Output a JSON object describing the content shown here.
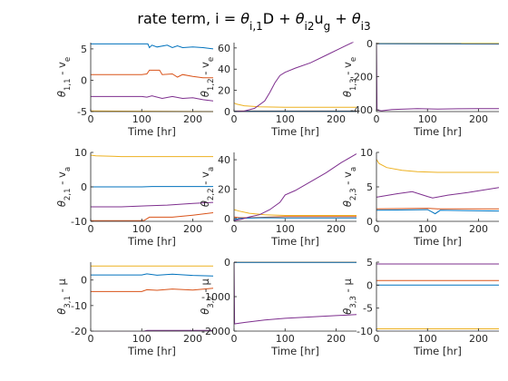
{
  "figure": {
    "title_parts": [
      {
        "t": "rate term, i = ",
        "s": "n"
      },
      {
        "t": "θ",
        "s": "i"
      },
      {
        "t": "i,1",
        "s": "sub"
      },
      {
        "t": "D + ",
        "s": "n"
      },
      {
        "t": "θ",
        "s": "i"
      },
      {
        "t": "i2",
        "s": "sub"
      },
      {
        "t": "u",
        "s": "n"
      },
      {
        "t": "g",
        "s": "sub"
      },
      {
        "t": " + ",
        "s": "n"
      },
      {
        "t": "θ",
        "s": "i"
      },
      {
        "t": "i3",
        "s": "sub"
      }
    ]
  },
  "colors": {
    "blue": "#0072BD",
    "orange": "#D95319",
    "yellow": "#EDB120",
    "purple": "#7E2F8E",
    "axis": "#262626"
  },
  "chart_data": [
    {
      "type": "line",
      "ylabel_parts": [
        {
          "t": "θ",
          "s": "i"
        },
        {
          "t": "1,1",
          "s": "sub"
        },
        {
          "t": " - v",
          "s": "n"
        },
        {
          "t": "e",
          "s": "sub"
        }
      ],
      "xlabel": "Time [hr]",
      "xlim": [
        0,
        240
      ],
      "ylim": [
        -5,
        6
      ],
      "xticks": [
        0,
        100,
        200
      ],
      "yticks": [
        -5,
        0,
        5
      ],
      "series": [
        {
          "color": "blue",
          "x": [
            0,
            10,
            100,
            112,
            115,
            120,
            130,
            150,
            160,
            170,
            180,
            200,
            220,
            240
          ],
          "y": [
            5.8,
            5.8,
            5.8,
            5.8,
            5.2,
            5.6,
            5.3,
            5.6,
            5.2,
            5.5,
            5.2,
            5.3,
            5.2,
            5.0
          ]
        },
        {
          "color": "orange",
          "x": [
            0,
            10,
            100,
            110,
            115,
            120,
            135,
            140,
            160,
            170,
            180,
            200,
            220,
            240
          ],
          "y": [
            0.9,
            0.9,
            0.9,
            1.0,
            1.6,
            1.6,
            1.6,
            0.9,
            1.0,
            0.5,
            0.9,
            0.6,
            0.4,
            0.4
          ]
        },
        {
          "color": "purple",
          "x": [
            0,
            10,
            100,
            110,
            120,
            140,
            160,
            180,
            200,
            220,
            240
          ],
          "y": [
            -2.6,
            -2.6,
            -2.6,
            -2.7,
            -2.5,
            -2.9,
            -2.6,
            -2.9,
            -2.8,
            -3.1,
            -3.3
          ]
        },
        {
          "color": "yellow",
          "x": [
            0,
            240
          ],
          "y": [
            -4.9,
            -5.0
          ]
        }
      ]
    },
    {
      "type": "line",
      "ylabel_parts": [
        {
          "t": "θ",
          "s": "i"
        },
        {
          "t": "1,2",
          "s": "sub"
        },
        {
          "t": " - v",
          "s": "n"
        },
        {
          "t": "e",
          "s": "sub"
        }
      ],
      "xlabel": "Time [hr]",
      "xlim": [
        0,
        240
      ],
      "ylim": [
        0,
        65
      ],
      "xticks": [
        0,
        100,
        200
      ],
      "yticks": [
        0,
        20,
        40,
        60
      ],
      "series": [
        {
          "color": "yellow",
          "x": [
            0,
            5,
            20,
            50,
            100,
            150,
            200,
            240
          ],
          "y": [
            8,
            7,
            5.5,
            4.5,
            4,
            4,
            4,
            4
          ]
        },
        {
          "color": "orange",
          "x": [
            0,
            240
          ],
          "y": [
            0.5,
            0.5
          ]
        },
        {
          "color": "blue",
          "x": [
            0,
            240
          ],
          "y": [
            0.3,
            0.3
          ]
        },
        {
          "color": "purple",
          "x": [
            0,
            20,
            40,
            60,
            70,
            80,
            90,
            100,
            120,
            150,
            180,
            210,
            240
          ],
          "y": [
            0,
            0.5,
            3,
            10,
            18,
            27,
            34,
            37,
            41,
            46,
            53,
            60,
            67
          ]
        }
      ]
    },
    {
      "type": "line",
      "ylabel_parts": [
        {
          "t": "θ",
          "s": "i"
        },
        {
          "t": "1,3",
          "s": "sub"
        },
        {
          "t": " - v",
          "s": "n"
        },
        {
          "t": "e",
          "s": "sub"
        }
      ],
      "xlabel": "Time [hr]",
      "xlim": [
        0,
        240
      ],
      "ylim": [
        -410,
        5
      ],
      "xticks": [
        0,
        100,
        200
      ],
      "yticks": [
        -400,
        -200,
        0
      ],
      "series": [
        {
          "color": "yellow",
          "x": [
            0,
            240
          ],
          "y": [
            0,
            0
          ]
        },
        {
          "color": "orange",
          "x": [
            0,
            240
          ],
          "y": [
            -2,
            -4
          ]
        },
        {
          "color": "blue",
          "x": [
            0,
            240
          ],
          "y": [
            -1,
            -2
          ]
        },
        {
          "color": "purple",
          "x": [
            0,
            1,
            10,
            30,
            80,
            120,
            160,
            200,
            240
          ],
          "y": [
            0,
            -400,
            -405,
            -398,
            -392,
            -395,
            -393,
            -392,
            -392
          ]
        }
      ]
    },
    {
      "type": "line",
      "ylabel_parts": [
        {
          "t": "θ",
          "s": "i"
        },
        {
          "t": "2,1",
          "s": "sub"
        },
        {
          "t": " - v",
          "s": "n"
        },
        {
          "t": "a",
          "s": "sub"
        }
      ],
      "xlabel": "Time [hr]",
      "xlim": [
        0,
        240
      ],
      "ylim": [
        -10,
        10
      ],
      "xticks": [
        0,
        100,
        200
      ],
      "yticks": [
        -10,
        0,
        10
      ],
      "series": [
        {
          "color": "yellow",
          "x": [
            0,
            10,
            60,
            120,
            180,
            240
          ],
          "y": [
            9.2,
            9.0,
            8.8,
            8.8,
            8.8,
            8.8
          ]
        },
        {
          "color": "blue",
          "x": [
            0,
            100,
            120,
            240
          ],
          "y": [
            0,
            0,
            0.1,
            0.1
          ]
        },
        {
          "color": "purple",
          "x": [
            0,
            60,
            110,
            150,
            200,
            240
          ],
          "y": [
            -5.8,
            -5.8,
            -5.5,
            -5.3,
            -4.8,
            -4.5
          ]
        },
        {
          "color": "orange",
          "x": [
            0,
            100,
            105,
            115,
            160,
            200,
            240
          ],
          "y": [
            -9.8,
            -9.8,
            -9.7,
            -8.8,
            -8.8,
            -8.2,
            -7.5
          ]
        }
      ]
    },
    {
      "type": "line",
      "ylabel_parts": [
        {
          "t": "θ",
          "s": "i"
        },
        {
          "t": "2,2",
          "s": "sub"
        },
        {
          "t": " - v",
          "s": "a"
        },
        {
          "t": "a",
          "s": "sub"
        }
      ],
      "xlabel": "Time [hr]",
      "xlim": [
        0,
        240
      ],
      "ylim": [
        -2,
        45
      ],
      "xticks": [
        0,
        100,
        200
      ],
      "yticks": [
        0,
        20,
        40
      ],
      "series": [
        {
          "color": "yellow",
          "x": [
            0,
            10,
            30,
            60,
            100,
            150,
            240
          ],
          "y": [
            6,
            5,
            3.5,
            2.5,
            2,
            2,
            2
          ]
        },
        {
          "color": "orange",
          "x": [
            0,
            10,
            30,
            60,
            100,
            240
          ],
          "y": [
            1,
            0.5,
            0.5,
            0.8,
            1.2,
            1.2
          ]
        },
        {
          "color": "blue",
          "x": [
            0,
            10,
            30,
            60,
            100,
            240
          ],
          "y": [
            -1,
            0,
            0.2,
            0.5,
            0.3,
            0.3
          ]
        },
        {
          "color": "purple",
          "x": [
            0,
            15,
            30,
            50,
            70,
            90,
            100,
            120,
            150,
            180,
            210,
            240
          ],
          "y": [
            -1.5,
            -0.5,
            1,
            2.5,
            6,
            11,
            16,
            19,
            25,
            31,
            38,
            44
          ]
        }
      ]
    },
    {
      "type": "line",
      "ylabel_parts": [
        {
          "t": "θ",
          "s": "i"
        },
        {
          "t": "2,3",
          "s": "sub"
        },
        {
          "t": " - v",
          "s": "n"
        },
        {
          "t": "a",
          "s": "sub"
        }
      ],
      "xlabel": "Time [hr]",
      "xlim": [
        0,
        240
      ],
      "ylim": [
        0,
        10
      ],
      "xticks": [
        0,
        100,
        200
      ],
      "yticks": [
        0,
        5,
        10
      ],
      "series": [
        {
          "color": "yellow",
          "x": [
            0,
            5,
            20,
            50,
            80,
            120,
            160,
            200,
            240
          ],
          "y": [
            9,
            8.4,
            7.8,
            7.4,
            7.2,
            7.1,
            7.1,
            7.1,
            7.1
          ]
        },
        {
          "color": "purple",
          "x": [
            0,
            40,
            70,
            100,
            110,
            140,
            180,
            240
          ],
          "y": [
            3.5,
            4,
            4.3,
            3.6,
            3.4,
            3.8,
            4.2,
            4.9
          ]
        },
        {
          "color": "orange",
          "x": [
            0,
            100,
            120,
            240
          ],
          "y": [
            1.8,
            1.9,
            1.8,
            1.8
          ]
        },
        {
          "color": "blue",
          "x": [
            0,
            100,
            108,
            115,
            125,
            240
          ],
          "y": [
            1.6,
            1.7,
            1.4,
            1.1,
            1.6,
            1.5
          ]
        }
      ]
    },
    {
      "type": "line",
      "ylabel_parts": [
        {
          "t": "θ",
          "s": "i"
        },
        {
          "t": "3,1",
          "s": "sub"
        },
        {
          "t": " - μ",
          "s": "n"
        }
      ],
      "xlabel": "Time [hr]",
      "xlim": [
        0,
        240
      ],
      "ylim": [
        -20,
        7
      ],
      "xticks": [
        0,
        100,
        200
      ],
      "yticks": [
        -20,
        -10,
        0
      ],
      "series": [
        {
          "color": "yellow",
          "x": [
            0,
            240
          ],
          "y": [
            5.5,
            5.5
          ]
        },
        {
          "color": "blue",
          "x": [
            0,
            100,
            110,
            130,
            160,
            200,
            240
          ],
          "y": [
            2.0,
            2.0,
            2.4,
            1.9,
            2.3,
            1.8,
            1.6
          ]
        },
        {
          "color": "orange",
          "x": [
            0,
            100,
            110,
            130,
            160,
            200,
            240
          ],
          "y": [
            -4.5,
            -4.5,
            -3.8,
            -4.0,
            -3.5,
            -3.9,
            -3.2
          ]
        },
        {
          "color": "purple",
          "x": [
            0,
            100,
            110,
            240
          ],
          "y": [
            -20.3,
            -20.3,
            -19.7,
            -19.7
          ]
        }
      ]
    },
    {
      "type": "line",
      "ylabel_parts": [
        {
          "t": "θ",
          "s": "i"
        },
        {
          "t": "3,2",
          "s": "sub"
        },
        {
          "t": " - μ",
          "s": "n"
        }
      ],
      "xlabel": "Time [hr]",
      "xlim": [
        0,
        240
      ],
      "ylim": [
        -2000,
        0
      ],
      "xticks": [
        0,
        100,
        200
      ],
      "yticks": [
        -2000,
        -1000,
        0
      ],
      "series": [
        {
          "color": "yellow",
          "x": [
            0,
            240
          ],
          "y": [
            0,
            0
          ]
        },
        {
          "color": "orange",
          "x": [
            0,
            240
          ],
          "y": [
            -8,
            -8
          ]
        },
        {
          "color": "blue",
          "x": [
            0,
            240
          ],
          "y": [
            -4,
            -4
          ]
        },
        {
          "color": "purple",
          "x": [
            0,
            1,
            20,
            60,
            100,
            150,
            200,
            240
          ],
          "y": [
            0,
            -1790,
            -1750,
            -1680,
            -1630,
            -1590,
            -1550,
            -1520
          ]
        }
      ]
    },
    {
      "type": "line",
      "ylabel_parts": [
        {
          "t": "θ",
          "s": "i"
        },
        {
          "t": "3,3",
          "s": "sub"
        },
        {
          "t": " - μ",
          "s": "n"
        }
      ],
      "xlabel": "Time [hr]",
      "xlim": [
        0,
        240
      ],
      "ylim": [
        -10,
        5
      ],
      "xticks": [
        0,
        100,
        200
      ],
      "yticks": [
        -10,
        -5,
        0,
        5
      ],
      "series": [
        {
          "color": "purple",
          "x": [
            0,
            240
          ],
          "y": [
            4.6,
            4.6
          ]
        },
        {
          "color": "orange",
          "x": [
            0,
            240
          ],
          "y": [
            1.0,
            1.0
          ]
        },
        {
          "color": "blue",
          "x": [
            0,
            240
          ],
          "y": [
            0.0,
            0.0
          ]
        },
        {
          "color": "yellow",
          "x": [
            0,
            240
          ],
          "y": [
            -9.5,
            -9.5
          ]
        }
      ]
    }
  ]
}
